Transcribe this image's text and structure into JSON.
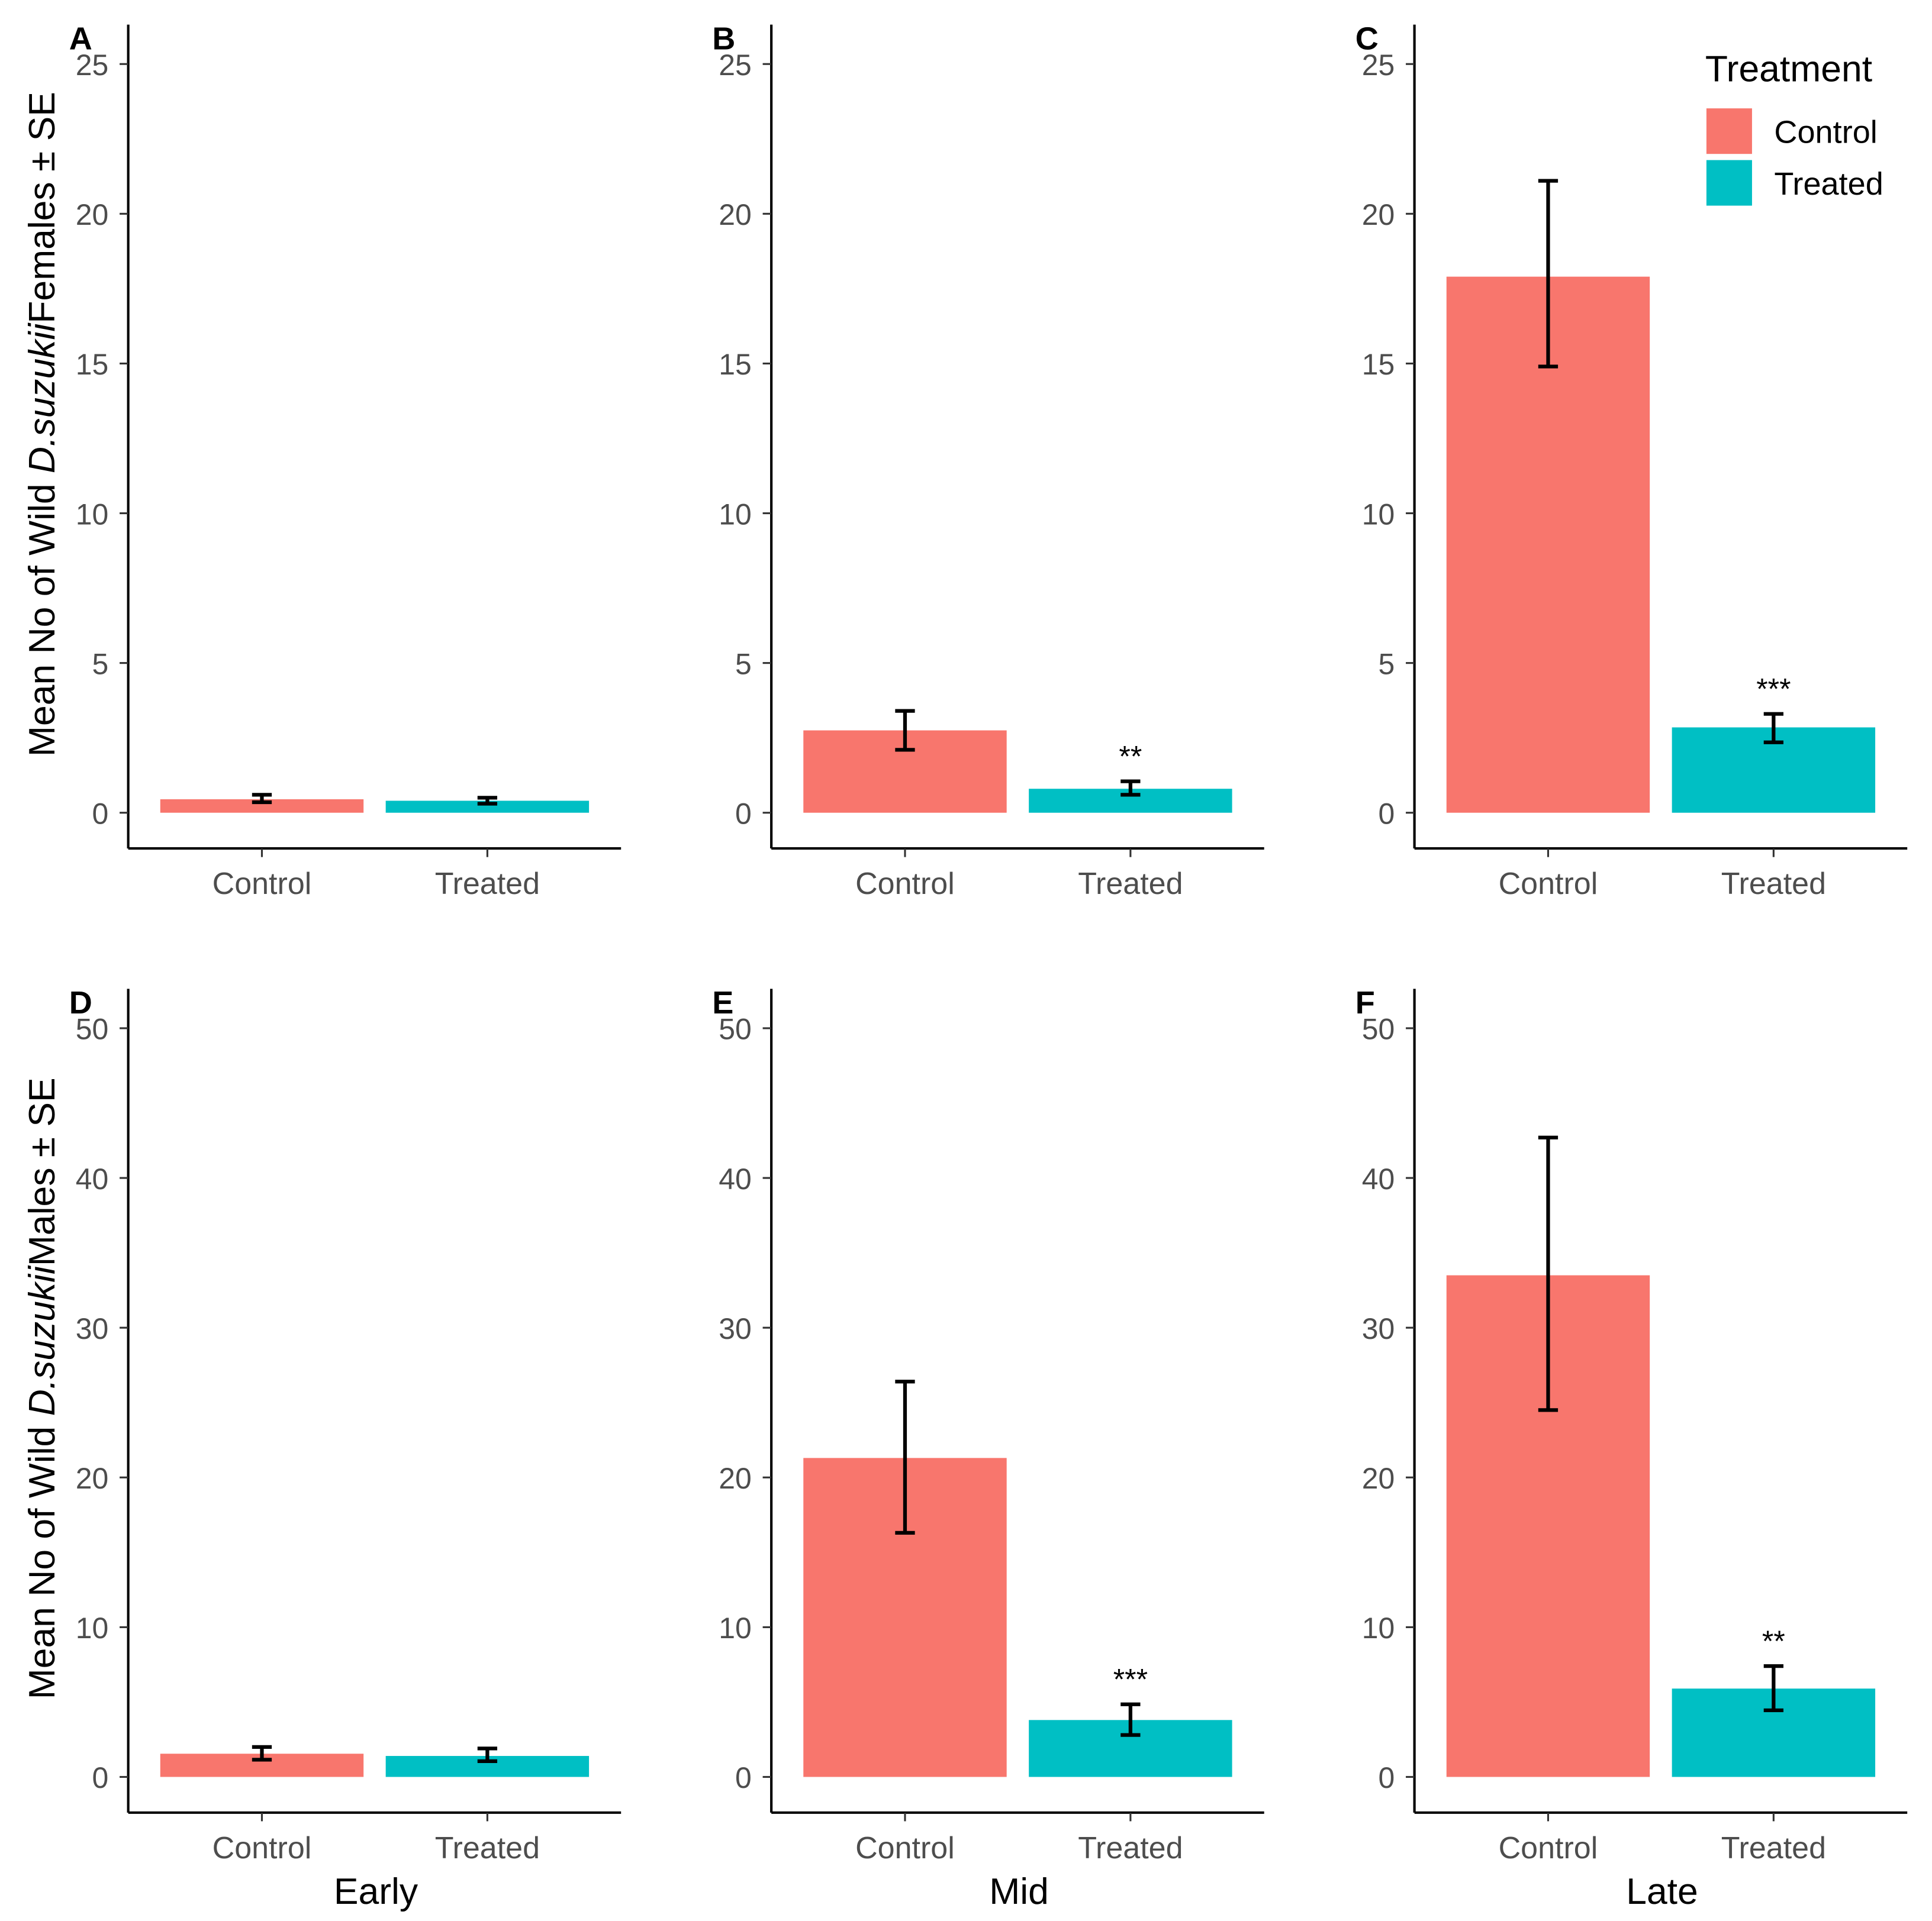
{
  "chart_data": {
    "type": "bar",
    "categories": [
      "Control",
      "Treated"
    ],
    "colors": {
      "Control": "#F8766D",
      "Treated": "#00BFC4"
    },
    "legend": {
      "title": "Treatment",
      "entries": [
        "Control",
        "Treated"
      ],
      "placement": "top-right"
    },
    "row_ylabels": [
      {
        "prefix": "Mean No of Wild ",
        "italic": "D.suzukii",
        "suffix": "Females ± SE"
      },
      {
        "prefix": "Mean No of Wild ",
        "italic": "D.suzukii",
        "suffix": "Males ± SE"
      }
    ],
    "column_xlabels": [
      "Early",
      "Mid",
      "Late"
    ],
    "panels": [
      {
        "letter": "A",
        "row": 0,
        "col": 0,
        "ylim": [
          0,
          25
        ],
        "yticks": [
          0,
          5,
          10,
          15,
          20,
          25
        ],
        "values": [
          0.45,
          0.4
        ],
        "se_low": [
          0.35,
          0.3
        ],
        "se_high": [
          0.6,
          0.5
        ],
        "significance": [
          "",
          ""
        ]
      },
      {
        "letter": "B",
        "row": 0,
        "col": 1,
        "ylim": [
          0,
          25
        ],
        "yticks": [
          0,
          5,
          10,
          15,
          20,
          25
        ],
        "values": [
          2.75,
          0.8
        ],
        "se_low": [
          2.1,
          0.6
        ],
        "se_high": [
          3.4,
          1.05
        ],
        "significance": [
          "",
          "**"
        ]
      },
      {
        "letter": "C",
        "row": 0,
        "col": 2,
        "ylim": [
          0,
          25
        ],
        "yticks": [
          0,
          5,
          10,
          15,
          20,
          25
        ],
        "values": [
          17.9,
          2.85
        ],
        "se_low": [
          14.9,
          2.35
        ],
        "se_high": [
          21.1,
          3.3
        ],
        "significance": [
          "",
          "***"
        ]
      },
      {
        "letter": "D",
        "row": 1,
        "col": 0,
        "ylim": [
          0,
          50
        ],
        "yticks": [
          0,
          10,
          20,
          30,
          40,
          50
        ],
        "values": [
          1.55,
          1.4
        ],
        "se_low": [
          1.15,
          1.05
        ],
        "se_high": [
          2.0,
          1.9
        ],
        "significance": [
          "",
          ""
        ]
      },
      {
        "letter": "E",
        "row": 1,
        "col": 1,
        "ylim": [
          0,
          50
        ],
        "yticks": [
          0,
          10,
          20,
          30,
          40,
          50
        ],
        "values": [
          21.3,
          3.8
        ],
        "se_low": [
          16.3,
          2.8
        ],
        "se_high": [
          26.4,
          4.85
        ],
        "significance": [
          "",
          "***"
        ]
      },
      {
        "letter": "F",
        "row": 1,
        "col": 2,
        "ylim": [
          0,
          50
        ],
        "yticks": [
          0,
          10,
          20,
          30,
          40,
          50
        ],
        "values": [
          33.5,
          5.9
        ],
        "se_low": [
          24.5,
          4.45
        ],
        "se_high": [
          42.7,
          7.4
        ],
        "significance": [
          "",
          "**"
        ]
      }
    ]
  }
}
